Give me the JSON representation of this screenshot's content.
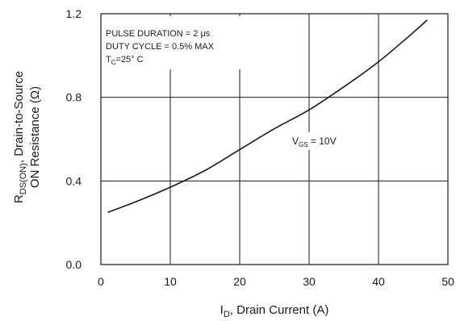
{
  "chart_data": {
    "type": "line",
    "xlim": [
      0,
      50
    ],
    "ylim": [
      0.0,
      1.2
    ],
    "x_ticks": [
      "0",
      "10",
      "20",
      "30",
      "40",
      "50"
    ],
    "y_ticks": [
      "0.0",
      "0.4",
      "0.8",
      "1.2"
    ],
    "grid": true,
    "xlabel": {
      "prefix": "I",
      "sub": "D",
      "suffix": ", Drain Current (A)"
    },
    "ylabel": {
      "line1_prefix": "R",
      "line1_sub": "DS(ON)",
      "line1_suffix": ", Drain-to-Source",
      "line2": "ON Resistance (Ω)"
    },
    "annotations": {
      "line1": "PULSE DURATION = 2 μs",
      "line2": "DUTY CYCLE = 0.5% MAX",
      "line3_prefix": "T",
      "line3_sub": "C",
      "line3_suffix": "=25° C"
    },
    "series": [
      {
        "label_prefix": "V",
        "label_sub": "GS",
        "label_suffix": " = 10V",
        "color": "#1a1a1a",
        "x": [
          1,
          5,
          10,
          15,
          20,
          25,
          30,
          35,
          40,
          45,
          47
        ],
        "y": [
          0.25,
          0.3,
          0.37,
          0.45,
          0.55,
          0.65,
          0.74,
          0.85,
          0.97,
          1.11,
          1.17
        ]
      }
    ]
  }
}
